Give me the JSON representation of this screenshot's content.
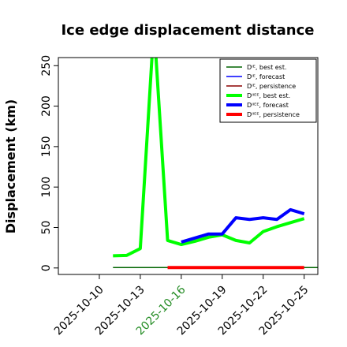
{
  "chart_data": {
    "type": "line",
    "title": "Ice edge displacement distance",
    "xlabel": "",
    "ylabel": "Displacement (km)",
    "xlim": [
      "2025-10-07",
      "2025-10-26"
    ],
    "ylim": [
      -8,
      260
    ],
    "x_ticks": [
      "2025-10-10",
      "2025-10-13",
      "2025-10-16",
      "2025-10-19",
      "2025-10-22",
      "2025-10-25"
    ],
    "x_tick_colors": [
      "#000000",
      "#000000",
      "#228B22",
      "#000000",
      "#000000",
      "#000000"
    ],
    "y_ticks": [
      0,
      50,
      100,
      150,
      200,
      250
    ],
    "grid": false,
    "legend": {
      "placement": "top-right",
      "entries": [
        {
          "label": "Dᴵᴱ, best est.",
          "color": "#006400",
          "width": "thin"
        },
        {
          "label": "Dᴵᴱ, forecast",
          "color": "#0000ff",
          "width": "thin"
        },
        {
          "label": "Dᴵᴱ, persistence",
          "color": "#8b0000",
          "width": "thin"
        },
        {
          "label": "Dᴵᴵᴱᴱ, best est.",
          "color": "#00ff00",
          "width": "thick"
        },
        {
          "label": "Dᴵᴵᴱᴱ, forecast",
          "color": "#0000ff",
          "width": "thick"
        },
        {
          "label": "Dᴵᴵᴱᴱ, persistence",
          "color": "#ff0000",
          "width": "thick"
        }
      ]
    },
    "series": [
      {
        "name": "Dᴵᴱ, best est.",
        "color": "#006400",
        "stroke": 1.5,
        "x": [
          "2025-10-11",
          "2025-10-26"
        ],
        "values": [
          0.5,
          0.5
        ]
      },
      {
        "name": "Dᴵᴵᴱᴱ, best est.",
        "color": "#00ff00",
        "stroke": 4,
        "x": [
          "2025-10-11",
          "2025-10-12",
          "2025-10-13",
          "2025-10-14",
          "2025-10-15",
          "2025-10-16",
          "2025-10-17",
          "2025-10-18",
          "2025-10-19",
          "2025-10-20",
          "2025-10-21",
          "2025-10-22",
          "2025-10-23",
          "2025-10-24",
          "2025-10-25"
        ],
        "values": [
          15,
          15.5,
          24,
          300,
          34,
          29,
          33,
          38,
          41,
          34,
          31,
          45,
          51,
          56,
          61
        ]
      },
      {
        "name": "Dᴵᴵᴱᴱ, forecast",
        "color": "#0000ff",
        "stroke": 4,
        "x": [
          "2025-10-16",
          "2025-10-17",
          "2025-10-18",
          "2025-10-19",
          "2025-10-20",
          "2025-10-21",
          "2025-10-22",
          "2025-10-23",
          "2025-10-24",
          "2025-10-25"
        ],
        "values": [
          32,
          37,
          42,
          42,
          62,
          60,
          62,
          60,
          72,
          67
        ]
      },
      {
        "name": "Dᴵᴵᴱᴱ, persistence",
        "color": "#ff0000",
        "stroke": 4,
        "x": [
          "2025-10-15",
          "2025-10-25"
        ],
        "values": [
          0.5,
          0.5
        ]
      }
    ]
  }
}
